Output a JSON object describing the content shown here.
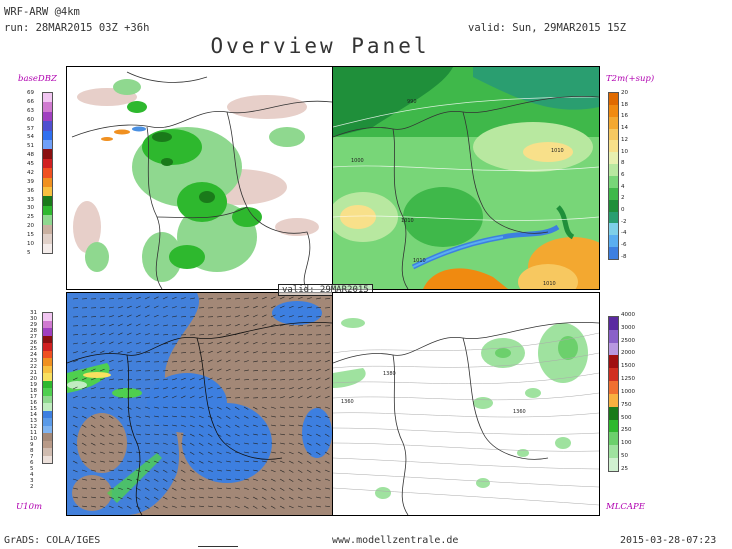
{
  "header": {
    "model": "WRF-ARW @4km",
    "run": "run: 28MAR2015 03Z +36h",
    "valid": "valid: Sun, 29MAR2015 15Z",
    "title": "Overview Panel"
  },
  "panels": {
    "top_left": {
      "label": "baseDBZ",
      "scale": [
        "69",
        "66",
        "63",
        "60",
        "57",
        "54",
        "51",
        "48",
        "45",
        "42",
        "39",
        "36",
        "33",
        "30",
        "25",
        "20",
        "15",
        "10",
        "5"
      ]
    },
    "top_right": {
      "label": "T2m(+sup)",
      "scale": [
        "20",
        "18",
        "16",
        "14",
        "12",
        "10",
        "8",
        "6",
        "4",
        "2",
        "0",
        "-2",
        "-4",
        "-6",
        "-8"
      ],
      "isobars": [
        "990",
        "1000",
        "1010",
        "1010",
        "1010",
        "1010"
      ]
    },
    "bottom_left": {
      "label": "U10m",
      "scale": [
        "31",
        "30",
        "29",
        "28",
        "27",
        "26",
        "25",
        "24",
        "23",
        "22",
        "21",
        "20",
        "19",
        "18",
        "17",
        "16",
        "15",
        "14",
        "13",
        "12",
        "11",
        "10",
        "9",
        "8",
        "7",
        "6",
        "5",
        "4",
        "3",
        "2"
      ],
      "overlay": "valid: 29MAR2015"
    },
    "bottom_right": {
      "label": "MLCAPE",
      "scale": [
        "4000",
        "3000",
        "2500",
        "2000",
        "1500",
        "1250",
        "1000",
        "750",
        "500",
        "250",
        "100",
        "50",
        "25"
      ],
      "contours": [
        "1380",
        "1360",
        "1360"
      ]
    }
  },
  "colors": {
    "dbz_green": "#2eb82e",
    "dbz_light_green": "#8fd88f",
    "dbz_rain_blue": "#4a90e2",
    "t2m_dark_green": "#1f8f3a",
    "t2m_light_green": "#78d678",
    "t2m_orange": "#f39c12",
    "wind_brown": "#a38877",
    "wind_blue": "#3d7fe0",
    "wind_green": "#4fcf4f",
    "cape_green": "#9fe29f",
    "accent_label": "#b000b0"
  },
  "footer": {
    "left": "GrADS: COLA/IGES",
    "center": "www.modellzentrale.de",
    "right": "2015-03-28-07:23"
  }
}
